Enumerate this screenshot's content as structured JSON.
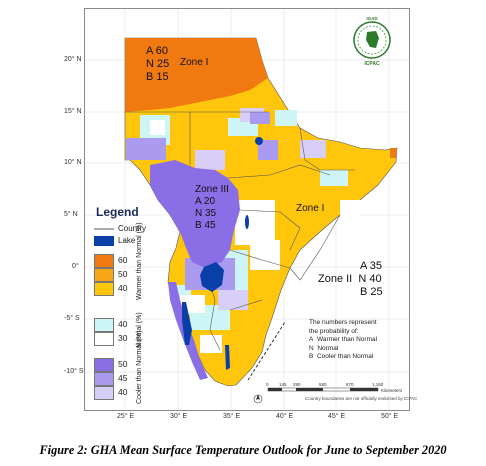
{
  "caption": "Figure 2: GHA Mean Surface Temperature Outlook for June to September 2020",
  "zones": {
    "zone1_north": {
      "label": "Zone I",
      "A": "A 60",
      "N": "N 25",
      "B": "B 15"
    },
    "zone1_east": {
      "label": "Zone I"
    },
    "zone3": {
      "label": "Zone III",
      "A": "A 20",
      "N": "N 35",
      "B": "B 45"
    },
    "zone2": {
      "label": "Zone II",
      "A": "A 35",
      "N": "N 40",
      "B": "B 25"
    }
  },
  "legend": {
    "title": "Legend",
    "country": "Country",
    "lake": "Lake",
    "warmer": {
      "label": "Warmer than Normal (%)",
      "values": [
        "60",
        "50",
        "40"
      ]
    },
    "normal": {
      "label": "Normal (%)",
      "values": [
        "40",
        "30"
      ]
    },
    "cooler": {
      "label": "Cooler than Normal (%)",
      "values": [
        "50",
        "45",
        "40"
      ]
    }
  },
  "note": {
    "line1": "The numbers represent",
    "line2": "the probability of:",
    "A": "A",
    "A_text": "Warmer than Normal",
    "N": "N",
    "N_text": "Normal",
    "B": "B",
    "B_text": "Cooler than Normal"
  },
  "lat_labels": [
    "20° N",
    "15° N",
    "10° N",
    "5° N",
    "0°",
    "-5° S",
    "-10° S"
  ],
  "lon_labels": [
    "25° E",
    "30° E",
    "35° E",
    "40° E",
    "45° E",
    "50° E"
  ],
  "scale": {
    "ticks": [
      "0",
      "145",
      "290",
      "580",
      "870",
      "1,160"
    ],
    "unit": "Kilometers"
  },
  "disclaimer": "Country boundaries are not officially endorsed by ICPAC",
  "logo": {
    "top": "IGAD",
    "bottom": "ICPAC"
  },
  "colors": {
    "warmer60": "#f07a10",
    "warmer50": "#f7a614",
    "warmer40": "#ffc60b",
    "normal40": "#cdf5f6",
    "normal30": "#ffffff",
    "cooler50": "#8a6ee6",
    "cooler45": "#ab9bf0",
    "cooler40": "#d8cff8",
    "lake": "#0a3fa8",
    "border": "#555555"
  }
}
